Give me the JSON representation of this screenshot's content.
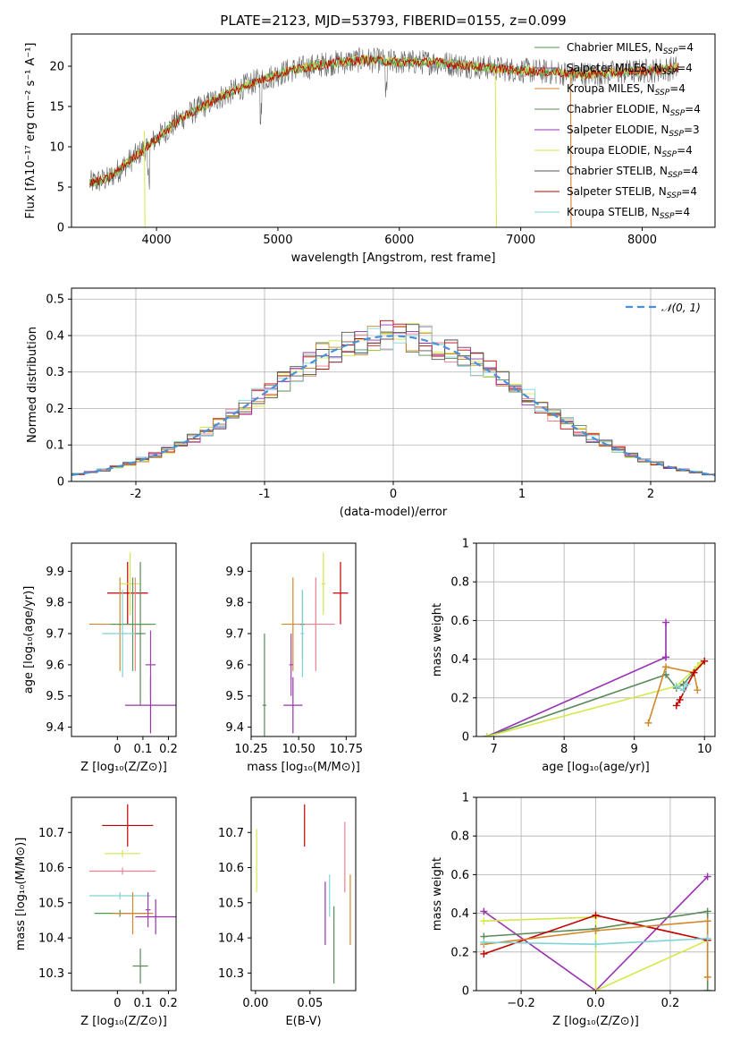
{
  "figure_title": "PLATE=2123, MJD=53793, FIBERID=0155, z=0.099",
  "colors": {
    "Chabrier MILES": "#4e9a4e",
    "Salpeter MILES": "#a040b0",
    "Kroupa MILES": "#d2872c",
    "Chabrier ELODIE": "#5a8a5a",
    "Salpeter ELODIE": "#9932b0",
    "Kroupa ELODIE": "#d4e84a",
    "Chabrier STELIB": "#555555",
    "Salpeter STELIB": "#c00000",
    "Kroupa STELIB": "#7fd3d6",
    "pink": "#f08090",
    "orange": "#e0883a",
    "normal": "#4a90d9"
  },
  "chart_data": [
    {
      "id": "spectrum",
      "type": "line",
      "xlabel": "wavelength [Angstrom, rest frame]",
      "ylabel": "Flux [fλ10⁻¹⁷ erg cm⁻² s⁻¹ A⁻¹]",
      "xlim": [
        3300,
        8600
      ],
      "ylim": [
        0,
        24
      ],
      "xticks": [
        4000,
        5000,
        6000,
        7000,
        8000
      ],
      "yticks": [
        0,
        5,
        10,
        15,
        20
      ],
      "continuum": {
        "x": [
          3450,
          3600,
          3800,
          4000,
          4200,
          4500,
          4800,
          5100,
          5400,
          5700,
          6000,
          6300,
          6600,
          6900,
          7200,
          7500,
          7800,
          8100,
          8300
        ],
        "y": [
          5.5,
          6.0,
          8.5,
          11.0,
          13.5,
          16.0,
          18.0,
          19.5,
          20.3,
          20.8,
          20.5,
          20.5,
          20.0,
          19.6,
          19.3,
          19.0,
          19.2,
          19.5,
          19.8
        ]
      },
      "legend": [
        {
          "name": "Chabrier MILES, N",
          "sub": "SSP",
          "n": "=4"
        },
        {
          "name": "Salpeter MILES, N",
          "sub": "SSP",
          "n": "=4"
        },
        {
          "name": "Kroupa MILES, N",
          "sub": "SSP",
          "n": "=4"
        },
        {
          "name": "Chabrier ELODIE, N",
          "sub": "SSP",
          "n": "=4"
        },
        {
          "name": "Salpeter ELODIE, N",
          "sub": "SSP",
          "n": "=3"
        },
        {
          "name": "Kroupa ELODIE, N",
          "sub": "SSP",
          "n": "=4"
        },
        {
          "name": "Chabrier STELIB, N",
          "sub": "SSP",
          "n": "=4"
        },
        {
          "name": "Salpeter STELIB, N",
          "sub": "SSP",
          "n": "=4"
        },
        {
          "name": "Kroupa STELIB, N",
          "sub": "SSP",
          "n": "=4"
        }
      ]
    },
    {
      "id": "residuals",
      "type": "step",
      "xlabel": "(data-model)/error",
      "ylabel": "Normed distribution",
      "xlim": [
        -2.5,
        2.5
      ],
      "ylim": [
        0,
        0.53
      ],
      "xticks": [
        -2,
        -1,
        0,
        1,
        2
      ],
      "yticks": [
        0.0,
        0.1,
        0.2,
        0.3,
        0.4,
        0.5
      ],
      "legend": "𝒩(0, 1)",
      "bin_width": 0.1
    },
    {
      "id": "age_vs_Z",
      "type": "errorbar",
      "xlabel": "Z [log₁₀(Z/Z⊙)]",
      "ylabel": "age  [log₁₀(age/yr)]",
      "xlim": [
        -0.18,
        0.23
      ],
      "ylim": [
        9.37,
        9.99
      ],
      "xticks": [
        0.0,
        0.1,
        0.2
      ],
      "yticks": [
        9.4,
        9.5,
        9.6,
        9.7,
        9.8,
        9.9
      ],
      "points": [
        {
          "c": "Salpeter STELIB",
          "x": 0.04,
          "y": 9.83,
          "ex": 0.08,
          "ey": 0.1
        },
        {
          "c": "Kroupa ELODIE",
          "x": 0.05,
          "y": 9.86,
          "ex": 0.04,
          "ey": 0.1
        },
        {
          "c": "Kroupa MILES",
          "x": 0.01,
          "y": 9.73,
          "ex": 0.12,
          "ey": 0.15
        },
        {
          "c": "pink",
          "x": 0.07,
          "y": 9.73,
          "ex": 0.07,
          "ey": 0.15
        },
        {
          "c": "Chabrier MILES",
          "x": 0.06,
          "y": 9.73,
          "ex": 0.09,
          "ey": 0.15
        },
        {
          "c": "Kroupa STELIB",
          "x": 0.02,
          "y": 9.7,
          "ex": 0.08,
          "ey": 0.14
        },
        {
          "c": "Chabrier ELODIE",
          "x": 0.09,
          "y": 9.7,
          "ex": 0.02,
          "ey": 0.23
        },
        {
          "c": "Salpeter ELODIE",
          "x": 0.13,
          "y": 9.47,
          "ex": 0.1,
          "ey": 0.09
        },
        {
          "c": "Salpeter MILES",
          "x": 0.13,
          "y": 9.6,
          "ex": 0.02,
          "ey": 0.11
        }
      ]
    },
    {
      "id": "age_vs_mass",
      "type": "errorbar",
      "xlabel": "mass [log₁₀(M/M⊙)]",
      "ylabel": "",
      "xlim": [
        10.25,
        10.8
      ],
      "ylim": [
        9.37,
        9.99
      ],
      "xticks": [
        10.25,
        10.5,
        10.75
      ],
      "xticklabels": [
        "10.25",
        "10.50",
        "10.75"
      ],
      "yticks": [
        9.4,
        9.5,
        9.6,
        9.7,
        9.8,
        9.9
      ],
      "points": [
        {
          "c": "Salpeter STELIB",
          "x": 10.72,
          "y": 9.83,
          "ex": 0.04,
          "ey": 0.1
        },
        {
          "c": "Kroupa ELODIE",
          "x": 10.63,
          "y": 9.86,
          "ex": 0.01,
          "ey": 0.1
        },
        {
          "c": "Kroupa MILES",
          "x": 10.47,
          "y": 9.73,
          "ex": 0.06,
          "ey": 0.15
        },
        {
          "c": "pink",
          "x": 10.59,
          "y": 9.73,
          "ex": 0.1,
          "ey": 0.15
        },
        {
          "c": "Chabrier MILES",
          "x": 10.52,
          "y": 9.73,
          "ex": 0.01,
          "ey": 0.11
        },
        {
          "c": "Kroupa STELIB",
          "x": 10.52,
          "y": 9.7,
          "ex": 0.01,
          "ey": 0.14
        },
        {
          "c": "Chabrier ELODIE",
          "x": 10.32,
          "y": 9.47,
          "ex": 0.01,
          "ey": 0.23
        },
        {
          "c": "Salpeter ELODIE",
          "x": 10.47,
          "y": 9.47,
          "ex": 0.05,
          "ey": 0.09
        },
        {
          "c": "Salpeter MILES",
          "x": 10.46,
          "y": 9.6,
          "ex": 0.01,
          "ey": 0.1
        }
      ]
    },
    {
      "id": "weight_vs_age",
      "type": "line",
      "xlabel": "age  [log₁₀(age/yr)]",
      "ylabel": "mass weight",
      "xlim": [
        6.75,
        10.15
      ],
      "ylim": [
        0,
        1
      ],
      "xticks": [
        7,
        8,
        9,
        10
      ],
      "yticks": [
        0.0,
        0.2,
        0.4,
        0.6,
        0.8,
        1.0
      ],
      "series": [
        {
          "c": "Salpeter ELODIE",
          "x": [
            6.9,
            9.45,
            9.45,
            9.45
          ],
          "y": [
            0.0,
            0.41,
            0.59,
            0.41
          ]
        },
        {
          "c": "Chabrier ELODIE",
          "x": [
            6.9,
            9.45,
            9.6,
            9.7,
            9.95
          ],
          "y": [
            0.0,
            0.32,
            0.25,
            0.27,
            0.38
          ]
        },
        {
          "c": "Kroupa ELODIE",
          "x": [
            6.9,
            9.6,
            9.95,
            9.9
          ],
          "y": [
            0.0,
            0.26,
            0.38,
            0.36
          ]
        },
        {
          "c": "Kroupa MILES",
          "x": [
            9.2,
            9.45,
            9.85,
            9.9
          ],
          "y": [
            0.07,
            0.36,
            0.33,
            0.24
          ]
        },
        {
          "c": "Salpeter STELIB",
          "x": [
            9.6,
            9.65,
            9.85,
            10.0
          ],
          "y": [
            0.16,
            0.19,
            0.33,
            0.39
          ]
        },
        {
          "c": "Kroupa STELIB",
          "x": [
            9.6,
            9.7,
            9.75
          ],
          "y": [
            0.26,
            0.24,
            0.27
          ]
        }
      ]
    },
    {
      "id": "mass_vs_Z",
      "type": "errorbar",
      "xlabel": "Z [log₁₀(Z/Z⊙)]",
      "ylabel": "mass [log₁₀(M/M⊙)]",
      "xlim": [
        -0.18,
        0.23
      ],
      "ylim": [
        10.25,
        10.8
      ],
      "xticks": [
        0.0,
        0.1,
        0.2
      ],
      "yticks": [
        10.3,
        10.4,
        10.5,
        10.6,
        10.7
      ],
      "points": [
        {
          "c": "Salpeter STELIB",
          "x": 0.04,
          "y": 10.72,
          "ex": 0.1,
          "ey": 0.06
        },
        {
          "c": "Kroupa ELODIE",
          "x": 0.02,
          "y": 10.64,
          "ex": 0.07,
          "ey": 0.01
        },
        {
          "c": "pink",
          "x": 0.02,
          "y": 10.59,
          "ex": 0.13,
          "ey": 0.01
        },
        {
          "c": "Kroupa STELIB",
          "x": 0.01,
          "y": 10.52,
          "ex": 0.12,
          "ey": 0.01
        },
        {
          "c": "Chabrier MILES",
          "x": 0.01,
          "y": 10.47,
          "ex": 0.1,
          "ey": 0.01
        },
        {
          "c": "Kroupa MILES",
          "x": 0.06,
          "y": 10.47,
          "ex": 0.08,
          "ey": 0.06
        },
        {
          "c": "Salpeter ELODIE",
          "x": 0.15,
          "y": 10.46,
          "ex": 0.08,
          "ey": 0.05
        },
        {
          "c": "Chabrier ELODIE",
          "x": 0.09,
          "y": 10.32,
          "ex": 0.03,
          "ey": 0.05
        },
        {
          "c": "Salpeter MILES",
          "x": 0.12,
          "y": 10.48,
          "ex": 0.01,
          "ey": 0.05
        }
      ]
    },
    {
      "id": "mass_vs_EBV",
      "type": "errorbar",
      "xlabel": "E(B-V)",
      "ylabel": "",
      "xlim": [
        -0.004,
        0.092
      ],
      "ylim": [
        10.25,
        10.8
      ],
      "xticks": [
        0.0,
        0.05
      ],
      "xticklabels": [
        "0.00",
        "0.05"
      ],
      "yticks": [
        10.3,
        10.4,
        10.5,
        10.6,
        10.7
      ],
      "points": [
        {
          "c": "Kroupa ELODIE",
          "x": 0.001,
          "y": 10.62,
          "ey": 0.09
        },
        {
          "c": "Salpeter STELIB",
          "x": 0.045,
          "y": 10.72,
          "ey": 0.06
        },
        {
          "c": "pink",
          "x": 0.082,
          "y": 10.63,
          "ey": 0.1
        },
        {
          "c": "Kroupa STELIB",
          "x": 0.068,
          "y": 10.52,
          "ey": 0.06
        },
        {
          "c": "Salpeter ELODIE",
          "x": 0.064,
          "y": 10.47,
          "ey": 0.09
        },
        {
          "c": "Kroupa MILES",
          "x": 0.087,
          "y": 10.48,
          "ey": 0.1
        },
        {
          "c": "Chabrier ELODIE",
          "x": 0.072,
          "y": 10.38,
          "ey": 0.11
        }
      ]
    },
    {
      "id": "weight_vs_Z",
      "type": "line",
      "xlabel": "Z [log₁₀(Z/Z⊙)]",
      "ylabel": "mass weight",
      "xlim": [
        -0.32,
        0.32
      ],
      "ylim": [
        0,
        1
      ],
      "xticks": [
        -0.2,
        0.0,
        0.2
      ],
      "xticklabels": [
        "−0.2",
        "0.0",
        "0.2"
      ],
      "yticks": [
        0.0,
        0.2,
        0.4,
        0.6,
        0.8,
        1.0
      ],
      "series": [
        {
          "c": "Salpeter ELODIE",
          "x": [
            -0.3,
            0.0,
            0.3
          ],
          "y": [
            0.41,
            0.0,
            0.59
          ]
        },
        {
          "c": "Kroupa ELODIE",
          "x": [
            -0.3,
            0.0,
            0.0,
            0.3
          ],
          "y": [
            0.36,
            0.38,
            0.0,
            0.26
          ]
        },
        {
          "c": "Chabrier ELODIE",
          "x": [
            -0.3,
            0.0,
            0.3,
            0.3
          ],
          "y": [
            0.28,
            0.32,
            0.41,
            0.0
          ]
        },
        {
          "c": "Salpeter STELIB",
          "x": [
            -0.3,
            0.0,
            0.3
          ],
          "y": [
            0.19,
            0.39,
            0.26
          ]
        },
        {
          "c": "Kroupa MILES",
          "x": [
            -0.3,
            0.0,
            0.3,
            0.3
          ],
          "y": [
            0.24,
            0.31,
            0.36,
            0.07
          ]
        },
        {
          "c": "Kroupa STELIB",
          "x": [
            -0.3,
            0.0,
            0.3
          ],
          "y": [
            0.25,
            0.24,
            0.27
          ]
        }
      ]
    }
  ]
}
